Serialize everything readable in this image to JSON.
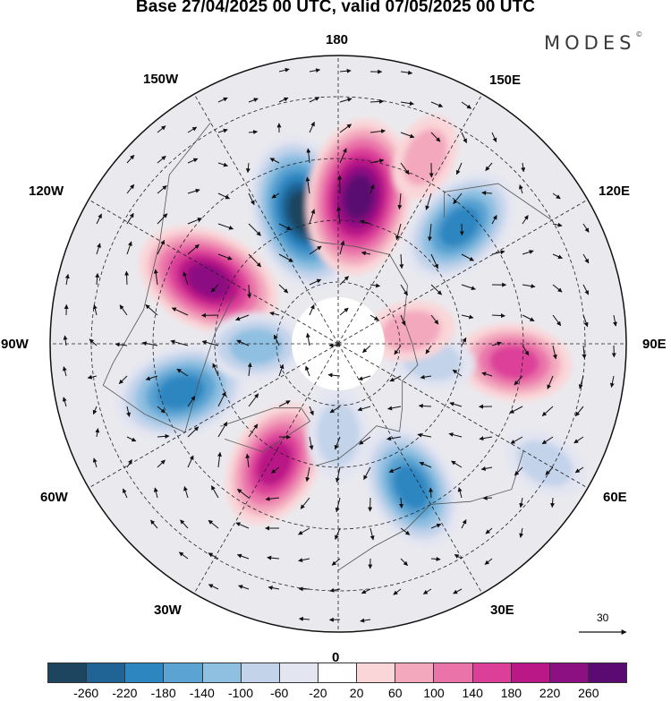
{
  "title": "Base 27/04/2025 00 UTC, valid 07/05/2025 00 UTC",
  "brand": {
    "text": "MODES",
    "mark": "©"
  },
  "longitude_labels": {
    "lon_0": "0",
    "lon_30e": "30E",
    "lon_60e": "60E",
    "lon_90e": "90E",
    "lon_120e": "120E",
    "lon_150e": "150E",
    "lon_180": "180",
    "lon_150w": "150W",
    "lon_120w": "120W",
    "lon_90w": "90W",
    "lon_60w": "60W",
    "lon_30w": "30W"
  },
  "reference_vector": {
    "value": "30"
  },
  "colorbar": {
    "colors": [
      "#1d4560",
      "#1f6495",
      "#2e86c1",
      "#5aa3d2",
      "#8fbfe1",
      "#c2d3ea",
      "#e3e5f1",
      "#ffffff",
      "#fad6d8",
      "#f3a8bd",
      "#ea74aa",
      "#dc3f98",
      "#b91886",
      "#8c1082",
      "#5a0a70"
    ],
    "ticks": [
      "-260",
      "-220",
      "-180",
      "-140",
      "-100",
      "-60",
      "-20",
      "20",
      "60",
      "100",
      "140",
      "180",
      "220",
      "260"
    ]
  },
  "anomaly_features": [
    {
      "lon": -165,
      "colat_deg": 33,
      "value": -260
    },
    {
      "lon": 172,
      "colat_deg": 36,
      "value": 260
    },
    {
      "lon": 134,
      "colat_deg": 41,
      "value": -180
    },
    {
      "lon": -116,
      "colat_deg": 35,
      "value": 230
    },
    {
      "lon": -73,
      "colat_deg": 40,
      "value": -200
    },
    {
      "lon": -28,
      "colat_deg": 33,
      "value": 180
    },
    {
      "lon": 27,
      "colat_deg": 39,
      "value": -180
    },
    {
      "lon": 84,
      "colat_deg": 43,
      "value": 140
    },
    {
      "lon": 80,
      "colat_deg": 23,
      "value": -60
    },
    {
      "lon": 100,
      "colat_deg": 18,
      "value": 60
    },
    {
      "lon": -88,
      "colat_deg": 20,
      "value": -100
    },
    {
      "lon": 0,
      "colat_deg": 22,
      "value": -80
    },
    {
      "lon": 155,
      "colat_deg": 50,
      "value": 60
    },
    {
      "lon": 60,
      "colat_deg": 58,
      "value": -60
    }
  ]
}
